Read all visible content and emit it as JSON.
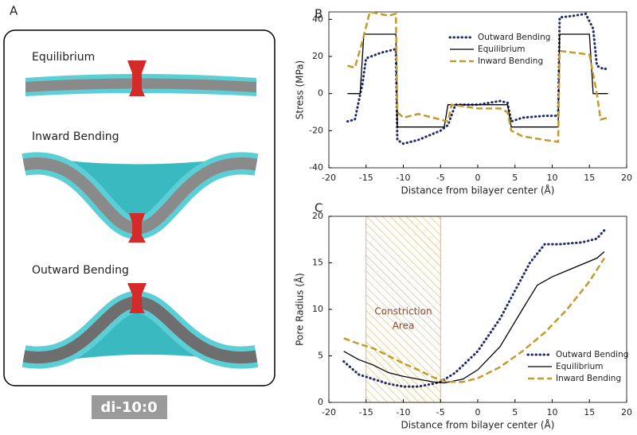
{
  "panel_a": {
    "label": "A",
    "titles": [
      "Equilibrium",
      "Inward Bending",
      "Outward Bending"
    ],
    "badge": "di-10:0"
  },
  "chart_data": [
    {
      "type": "line",
      "panel": "B",
      "xlabel": "Distance from bilayer center (Å)",
      "ylabel": "Stress (MPa)",
      "xlim": [
        -20,
        20
      ],
      "xticks": [
        -20,
        -15,
        -10,
        -5,
        0,
        5,
        10,
        15,
        20
      ],
      "ylim": [
        -40,
        44
      ],
      "yticks": [
        -40,
        -20,
        0,
        20,
        40
      ],
      "legend": "upper center",
      "series": [
        {
          "name": "Outward Bending",
          "color": "#1f2a6b",
          "style": "dotted",
          "x": [
            -17.5,
            -16.5,
            -15.5,
            -15,
            -13,
            -11,
            -10.8,
            -10,
            -8,
            -5,
            -4,
            -3,
            0,
            3,
            4,
            4.5,
            6,
            9,
            10.8,
            11,
            13,
            14.5,
            15.5,
            16,
            17,
            17.5
          ],
          "values": [
            -15,
            -14,
            5,
            19,
            22,
            24,
            -25,
            -27,
            -25,
            -20,
            -17,
            -6,
            -6,
            -4,
            -5,
            -15,
            -13,
            -12,
            -12,
            41,
            42,
            43,
            35,
            15,
            13,
            14
          ]
        },
        {
          "name": "Equilibrium",
          "color": "#000000",
          "style": "solid",
          "x": [
            -17.5,
            -15.8,
            -15.3,
            -11,
            -10.8,
            -4.5,
            -4,
            4,
            4.5,
            10.8,
            11,
            15,
            15.5,
            17.5
          ],
          "values": [
            0,
            0,
            32,
            32,
            -18,
            -18,
            -6,
            -6,
            -18,
            -18,
            32,
            32,
            0,
            0
          ]
        },
        {
          "name": "Inward Bending",
          "color": "#c49a2c",
          "style": "dashed",
          "x": [
            -17.5,
            -16.5,
            -15.5,
            -14.5,
            -12,
            -11,
            -10.8,
            -10,
            -8,
            -5,
            -4,
            -3.5,
            0,
            3,
            4,
            4.5,
            6,
            9,
            10.8,
            11,
            13,
            15,
            16,
            16.5,
            17.5
          ],
          "values": [
            15,
            14,
            28,
            44,
            42,
            43,
            -10,
            -13,
            -11,
            -14,
            -15,
            -6,
            -8,
            -8,
            -10,
            -20,
            -23,
            -25,
            -26,
            23,
            22,
            21,
            0,
            -14,
            -13
          ]
        }
      ]
    },
    {
      "type": "line",
      "panel": "C",
      "xlabel": "Distance from bilayer center (Å)",
      "ylabel": "Pore Radius (Å)",
      "xlim": [
        -20,
        20
      ],
      "xticks": [
        -20,
        -15,
        -10,
        -5,
        0,
        5,
        10,
        15,
        20
      ],
      "ylim": [
        0,
        20
      ],
      "yticks": [
        0,
        5,
        10,
        15,
        20
      ],
      "legend": "lower right",
      "annotation": {
        "lines": [
          "Constriction",
          "Area"
        ],
        "x_range": [
          -15,
          -5
        ]
      },
      "series": [
        {
          "name": "Outward Bending",
          "color": "#1f2a6b",
          "style": "dotted",
          "x": [
            -18,
            -16,
            -14,
            -12,
            -10,
            -8,
            -6,
            -5,
            -3,
            0,
            3,
            5,
            7,
            9,
            11,
            14,
            16,
            17
          ],
          "values": [
            4.4,
            3,
            2.5,
            2,
            1.7,
            1.7,
            2,
            2.2,
            3.2,
            5.5,
            9,
            12,
            15,
            17,
            17,
            17.2,
            17.6,
            18.5
          ]
        },
        {
          "name": "Equilibrium",
          "color": "#000000",
          "style": "solid",
          "x": [
            -18,
            -16,
            -14,
            -12,
            -10,
            -8,
            -6,
            -4.5,
            -2,
            0,
            3,
            6,
            8,
            10,
            13,
            16,
            17
          ],
          "values": [
            5.5,
            4.6,
            4,
            3.2,
            2.8,
            2.5,
            2.2,
            2.1,
            2.5,
            3.5,
            6,
            10,
            12.6,
            13.5,
            14.5,
            15.5,
            16.2
          ]
        },
        {
          "name": "Inward Bending",
          "color": "#c49a2c",
          "style": "dashed",
          "x": [
            -18,
            -16,
            -14,
            -12,
            -10,
            -8,
            -6,
            -4,
            -2,
            0,
            3,
            6,
            9,
            12,
            15,
            17
          ],
          "values": [
            6.9,
            6.3,
            5.8,
            5,
            4.2,
            3.5,
            2.7,
            2.2,
            2.2,
            2.6,
            3.8,
            5.5,
            7.5,
            10,
            13,
            15.5
          ]
        }
      ]
    }
  ]
}
